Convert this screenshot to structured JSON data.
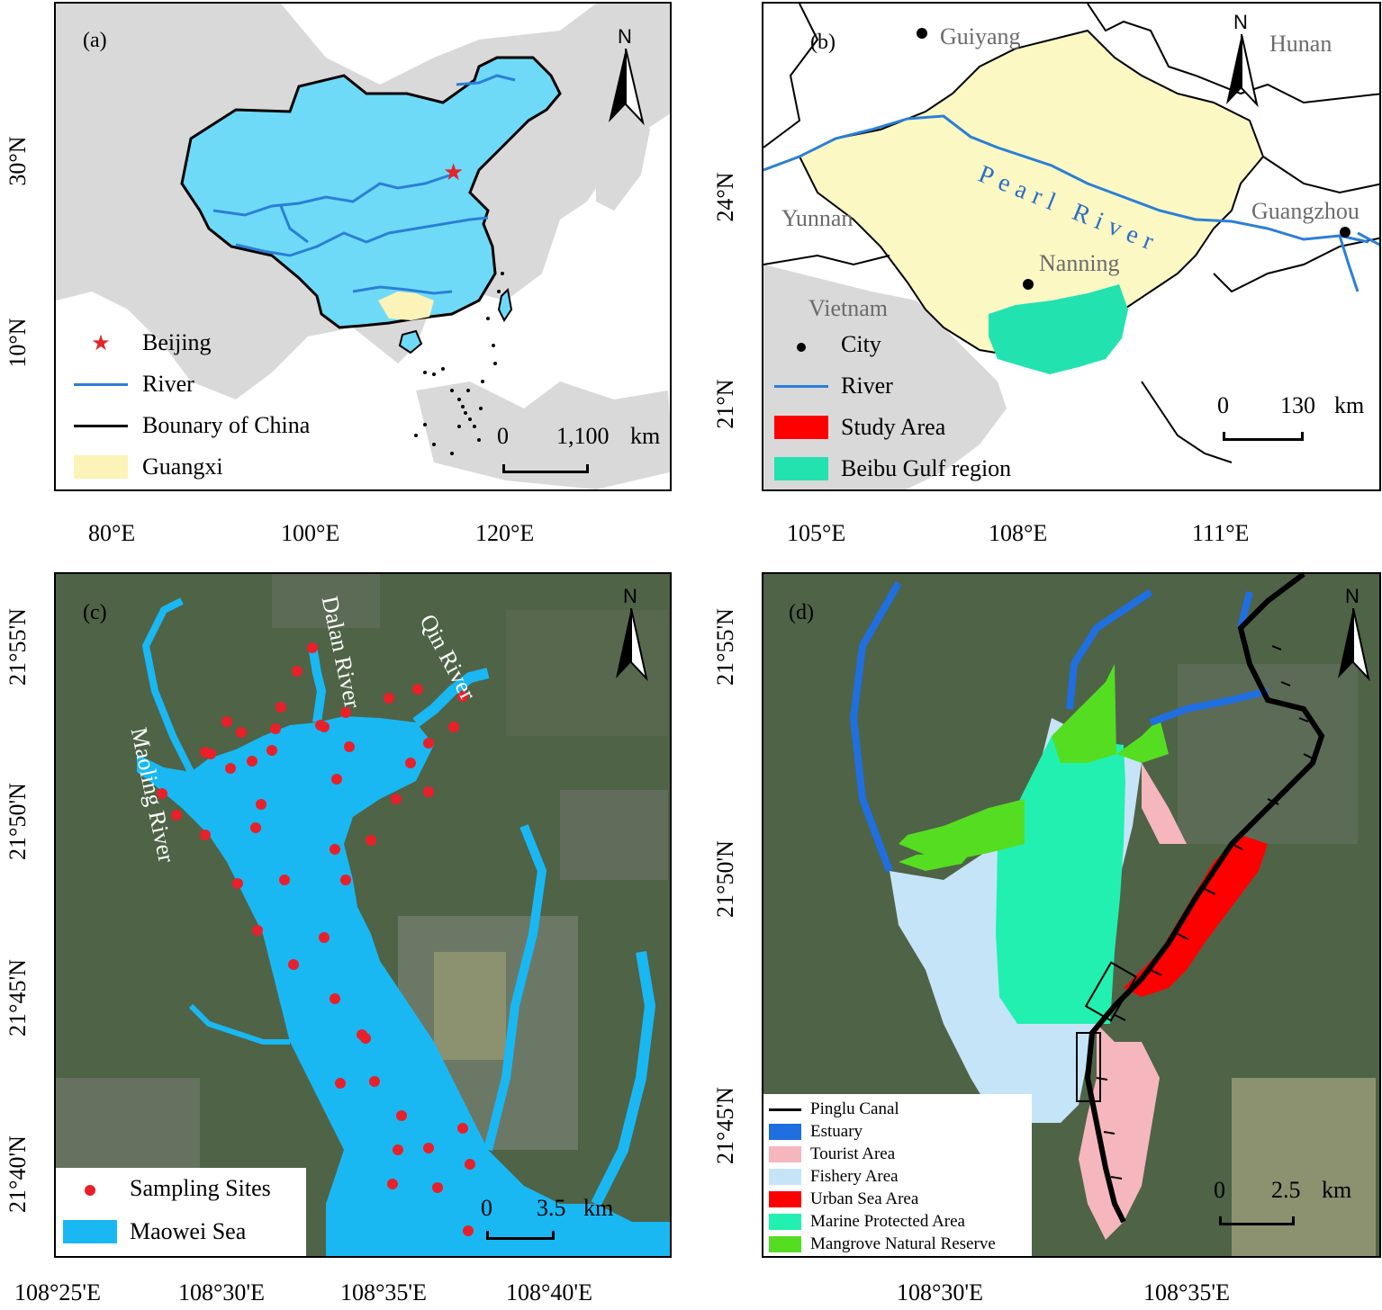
{
  "panel_a": {
    "label": "(a)",
    "north": "N",
    "legend": [
      {
        "label": "Beijing",
        "symbol": "star",
        "color": "#e0262a"
      },
      {
        "label": "River",
        "symbol": "line",
        "color": "#2b7fd6"
      },
      {
        "label": "Bounary of China",
        "symbol": "line",
        "color": "#000000"
      },
      {
        "label": "Guangxi",
        "symbol": "box",
        "color": "#fbf3b8"
      }
    ],
    "scale": {
      "start": "0",
      "end": "1,100",
      "unit": "km"
    },
    "x_ticks": [
      "80°E",
      "100°E",
      "120°E"
    ],
    "y_ticks": [
      "30°N",
      "10°N"
    ],
    "colors": {
      "china": "#6fdaf8",
      "land": "#d9d9d9",
      "river": "#2b7fd6",
      "guangxi": "#fbf3b8",
      "beijing": "#e0262a"
    }
  },
  "panel_b": {
    "label": "(b)",
    "north": "N",
    "places": {
      "guiyang": "Guiyang",
      "hunan": "Hunan",
      "yunnan": "Yunnan",
      "guangzhou": "Guangzhou",
      "nanning": "Nanning",
      "vietnam": "Vietnam",
      "river_name": "Pearl River"
    },
    "legend": [
      {
        "label": "City",
        "symbol": "dot",
        "color": "#000000"
      },
      {
        "label": "River",
        "symbol": "line",
        "color": "#2b7fd6"
      },
      {
        "label": "Study Area",
        "symbol": "box",
        "color": "#ff0000"
      },
      {
        "label": "Beibu Gulf region",
        "symbol": "box",
        "color": "#22e2b0"
      }
    ],
    "scale": {
      "start": "0",
      "end": "130",
      "unit": "km"
    },
    "x_ticks": [
      "105°E",
      "108°E",
      "111°E"
    ],
    "y_ticks": [
      "24°N",
      "21°N"
    ],
    "colors": {
      "guangxi": "#fbf8c4",
      "beibu": "#22e2b0",
      "river": "#2b7fd6",
      "land": "#d9d9d9"
    }
  },
  "panel_c": {
    "label": "(c)",
    "north": "N",
    "rivers": [
      "Maoling River",
      "Dalan River",
      "Qin River"
    ],
    "legend": [
      {
        "label": "Sampling Sites",
        "symbol": "dot",
        "color": "#e8202a"
      },
      {
        "label": "Maowei Sea",
        "symbol": "box",
        "color": "#19b8f3"
      }
    ],
    "scale": {
      "start": "0",
      "end": "3.5",
      "unit": "km"
    },
    "x_ticks": [
      "108°25'E",
      "108°30'E",
      "108°35'E",
      "108°40'E"
    ],
    "y_ticks": [
      "21°55'N",
      "21°50'N",
      "21°45'N",
      "21°40'N"
    ],
    "colors": {
      "sea": "#19b8f3",
      "site": "#e8202a"
    }
  },
  "panel_d": {
    "label": "(d)",
    "north": "N",
    "legend": [
      {
        "label": "Pinglu Canal",
        "symbol": "line",
        "color": "#000000"
      },
      {
        "label": "Estuary",
        "symbol": "box",
        "color": "#1f6fe0"
      },
      {
        "label": "Tourist Area",
        "symbol": "box",
        "color": "#f5b7bd"
      },
      {
        "label": "Fishery Area",
        "symbol": "box",
        "color": "#c6e4f7"
      },
      {
        "label": "Urban Sea Area",
        "symbol": "box",
        "color": "#ff0000"
      },
      {
        "label": "Marine Protected Area",
        "symbol": "box",
        "color": "#22f0b0"
      },
      {
        "label": "Mangrove Natural Reserve",
        "symbol": "box",
        "color": "#55dd22"
      }
    ],
    "scale": {
      "start": "0",
      "end": "2.5",
      "unit": "km"
    },
    "x_ticks": [
      "108°30'E",
      "108°35'E"
    ],
    "y_ticks": [
      "21°55'N",
      "21°50'N",
      "21°45'N"
    ]
  }
}
